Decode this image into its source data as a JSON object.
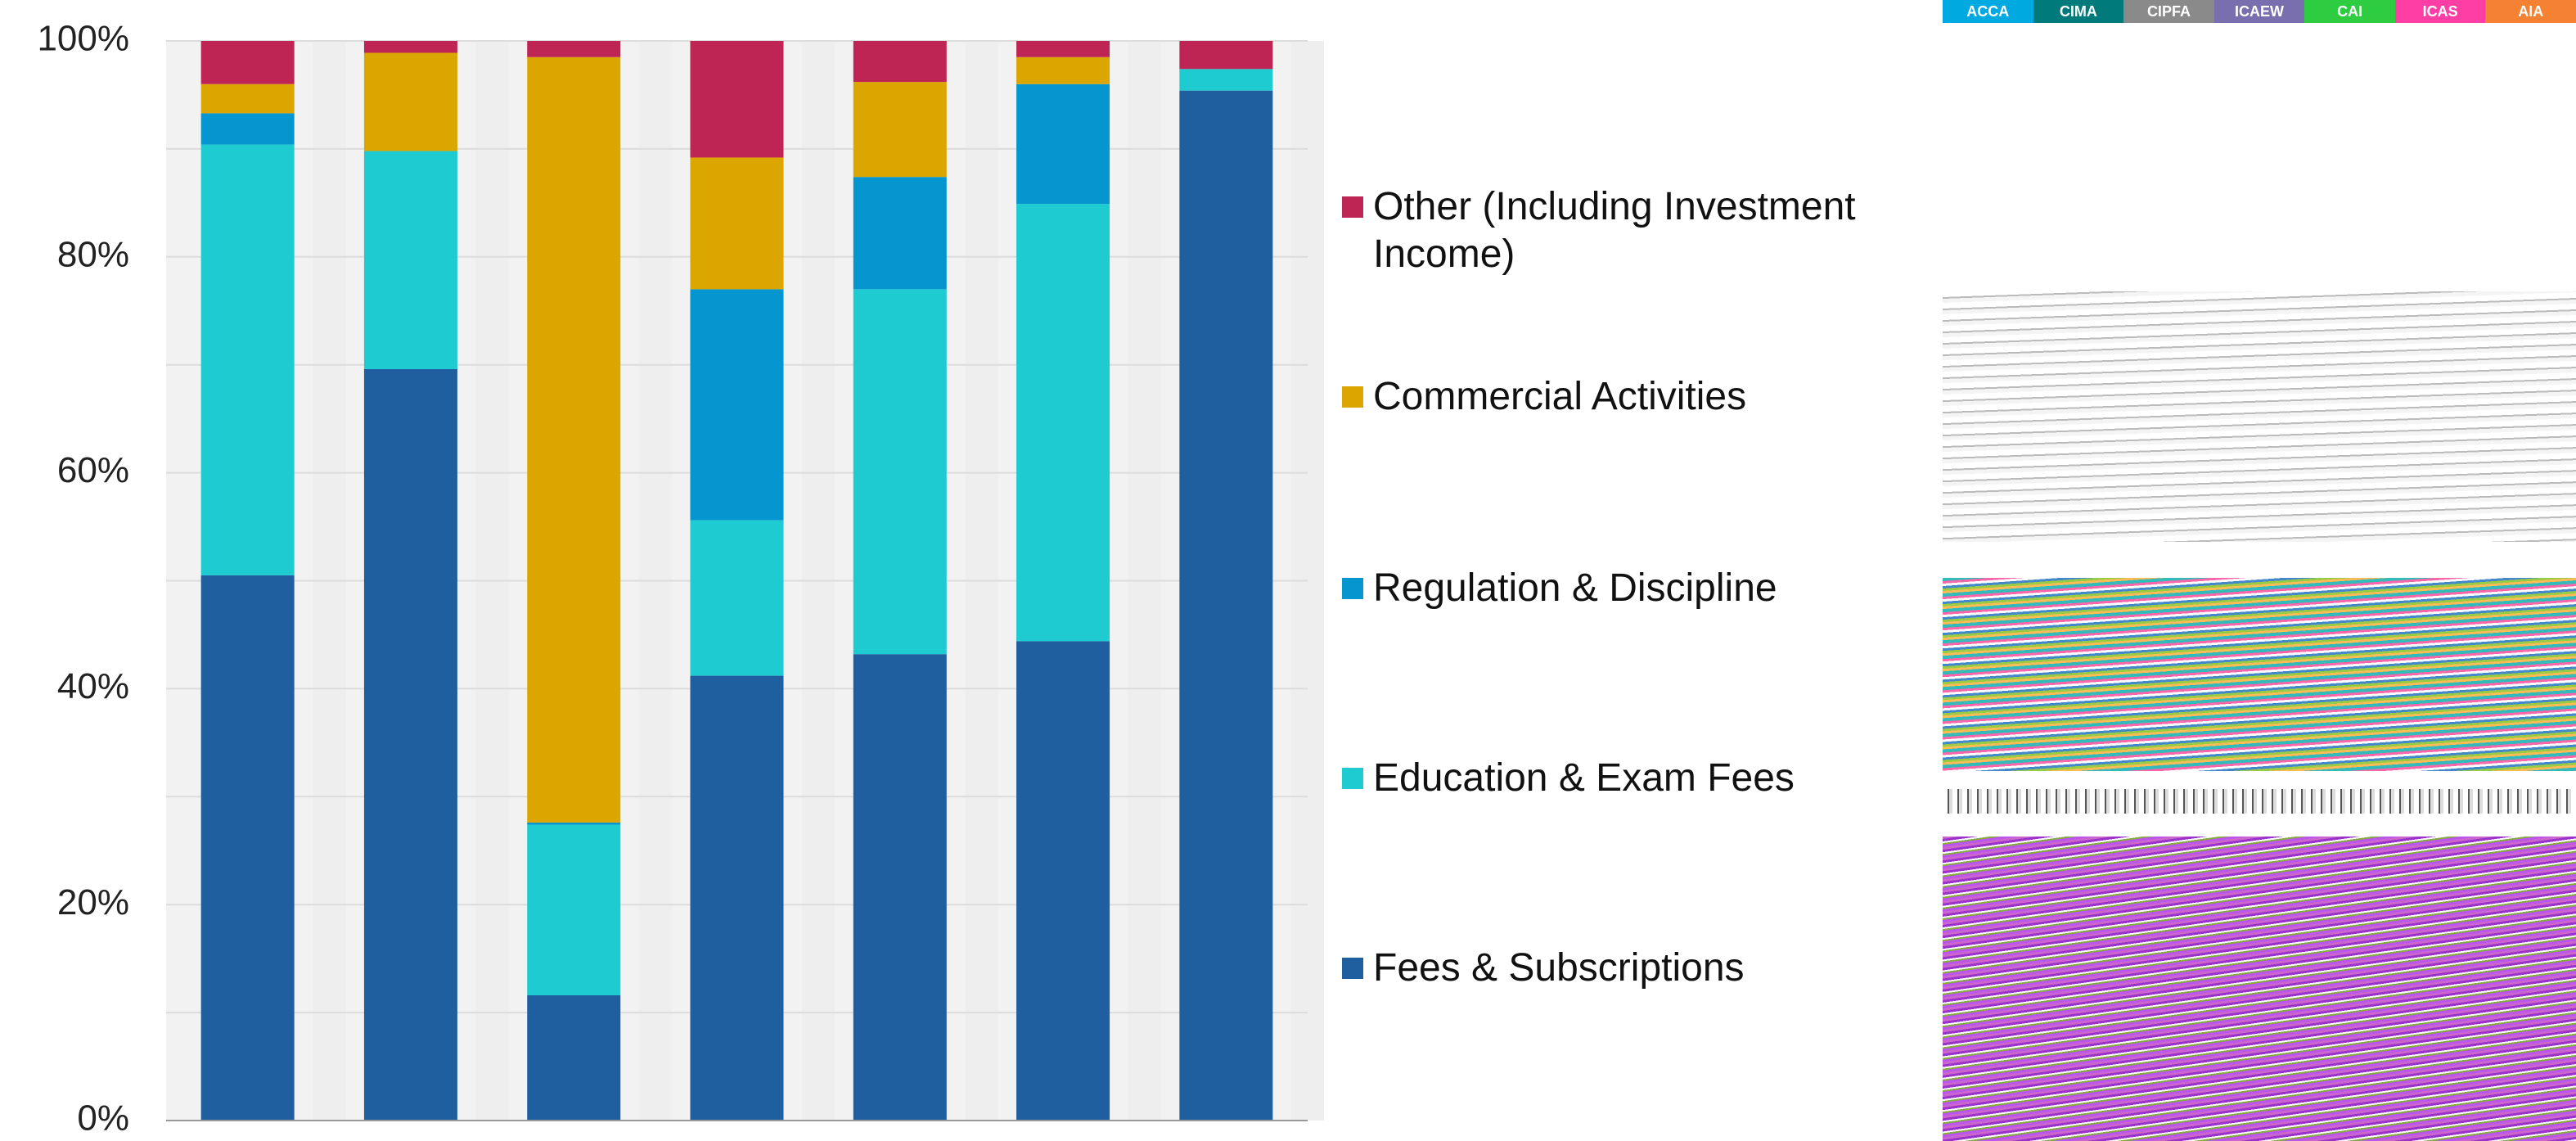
{
  "chart_data": {
    "type": "stacked_bar",
    "categories": [
      null,
      null,
      null,
      null,
      null,
      null,
      null
    ],
    "series": [
      {
        "name": "Fees & Subscriptions",
        "color": "#1f5fa0",
        "values": [
          50.5,
          69.6,
          11.6,
          41.2,
          43.2,
          44.4,
          95.4
        ]
      },
      {
        "name": "Education & Exam Fees",
        "color": "#1ecbd1",
        "values": [
          39.9,
          20.2,
          15.8,
          14.4,
          33.8,
          40.5,
          2.0
        ]
      },
      {
        "name": "Regulation & Discipline",
        "color": "#0596cf",
        "values": [
          2.9,
          0,
          0.2,
          21.4,
          10.4,
          11.1,
          0
        ]
      },
      {
        "name": "Commercial Activities",
        "color": "#dba600",
        "values": [
          2.7,
          9.1,
          70.9,
          12.2,
          8.8,
          2.5,
          0
        ]
      },
      {
        "name": "Other (Including Investment Income)",
        "color": "#be2554",
        "values": [
          4.0,
          1.1,
          1.5,
          10.8,
          3.8,
          1.5,
          2.6
        ]
      }
    ],
    "ylim": [
      0,
      100
    ],
    "yticks": [
      {
        "value": 0,
        "label": "0%"
      },
      {
        "value": 20,
        "label": "20%"
      },
      {
        "value": 40,
        "label": "40%"
      },
      {
        "value": 60,
        "label": "60%"
      },
      {
        "value": 80,
        "label": "80%"
      },
      {
        "value": 100,
        "label": "100%"
      }
    ],
    "minor_yticks": [
      10,
      30,
      50,
      70,
      90
    ],
    "grid": true
  },
  "tabs": [
    {
      "label": "ACCA",
      "color": "#00a9e0"
    },
    {
      "label": "CIMA",
      "color": "#007a7a"
    },
    {
      "label": "CIPFA",
      "color": "#8a8a8a"
    },
    {
      "label": "ICAEW",
      "color": "#7a6fae"
    },
    {
      "label": "CAI",
      "color": "#2ecc40"
    },
    {
      "label": "ICAS",
      "color": "#ff3ea5"
    },
    {
      "label": "AIA",
      "color": "#f58232"
    }
  ]
}
